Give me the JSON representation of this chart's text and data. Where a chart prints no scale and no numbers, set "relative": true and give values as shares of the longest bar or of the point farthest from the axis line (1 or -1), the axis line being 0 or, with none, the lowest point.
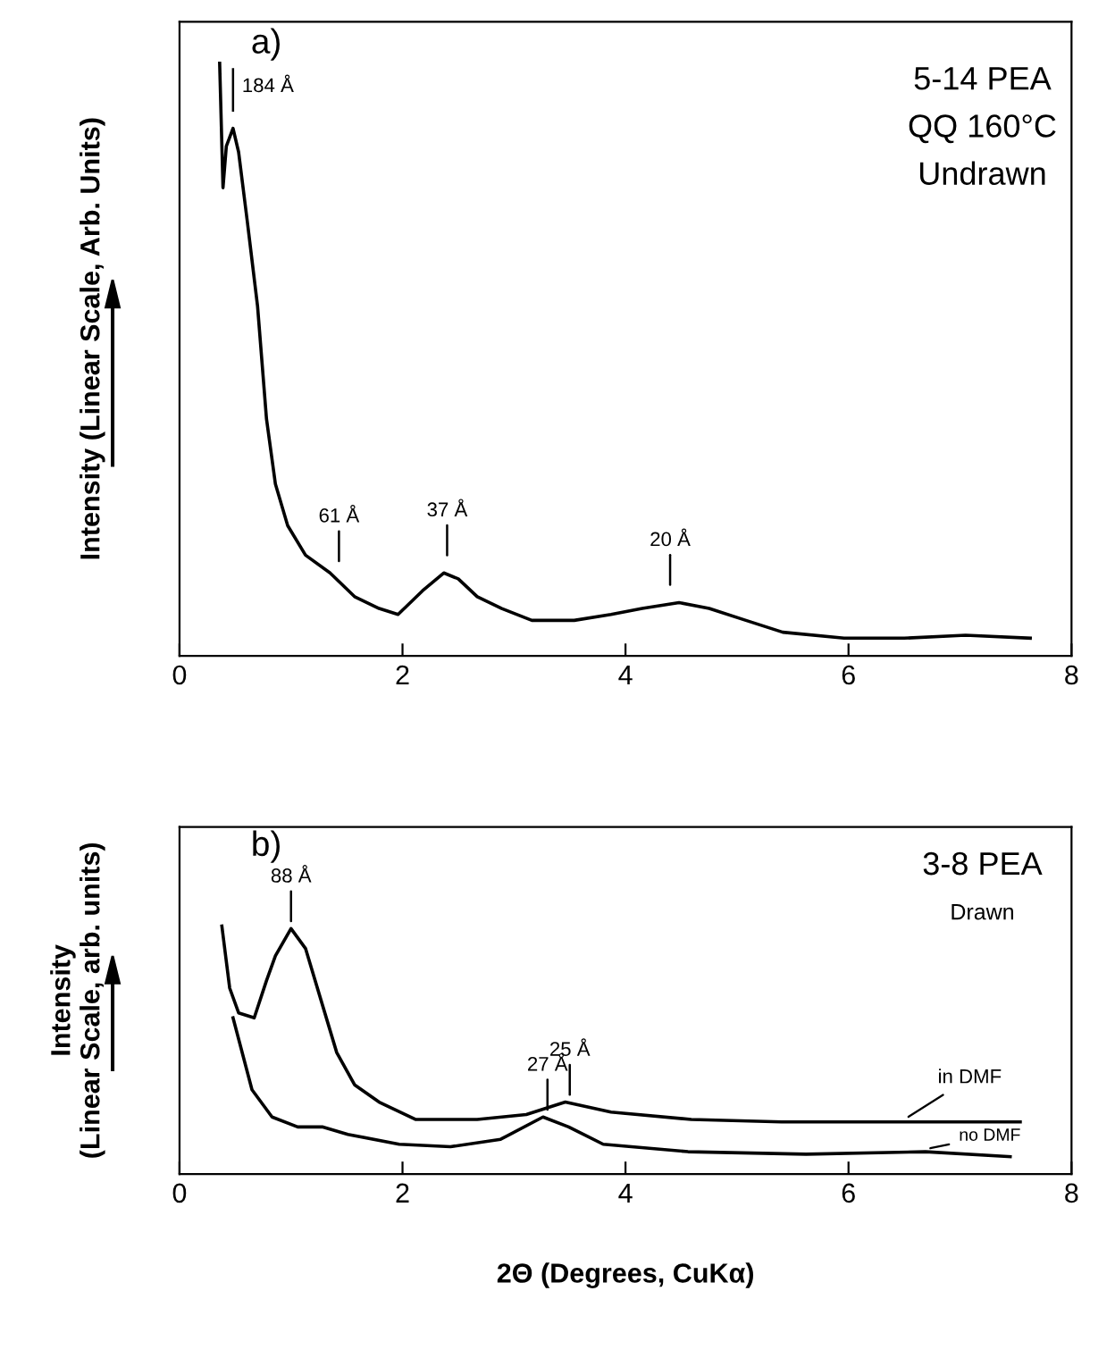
{
  "chart_data": [
    {
      "type": "line",
      "relative": true,
      "ylabel": "Intensity (Linear Scale, Arb. Units)",
      "xlim": [
        0,
        8
      ],
      "xticks": [
        0,
        2,
        4,
        6,
        8
      ],
      "line_style": "solid",
      "grid": false,
      "annotations": [
        "a)",
        "5-14 PEA",
        "QQ 160°C",
        "Undrawn",
        {
          "text": "184 Å",
          "x": 0.48,
          "y": 0.89
        },
        {
          "text": "61 Å",
          "x": 1.43,
          "y": 0.13
        },
        {
          "text": "37 Å",
          "x": 2.4,
          "y": 0.14
        },
        {
          "text": "20 Å",
          "x": 4.4,
          "y": 0.09
        }
      ],
      "series": [
        {
          "color": "#000000",
          "x": [
            0.36,
            0.39,
            0.42,
            0.48,
            0.53,
            0.61,
            0.7,
            0.78,
            0.86,
            0.97,
            1.13,
            1.35,
            1.57,
            1.79,
            1.96,
            2.18,
            2.37,
            2.5,
            2.67,
            2.89,
            3.16,
            3.54,
            3.87,
            4.15,
            4.48,
            4.75,
            5.08,
            5.41,
            5.96,
            6.5,
            7.05,
            7.63
          ],
          "values": [
            1.0,
            0.79,
            0.86,
            0.89,
            0.85,
            0.73,
            0.59,
            0.4,
            0.29,
            0.22,
            0.17,
            0.14,
            0.1,
            0.08,
            0.07,
            0.11,
            0.14,
            0.13,
            0.1,
            0.08,
            0.06,
            0.06,
            0.07,
            0.08,
            0.09,
            0.08,
            0.06,
            0.04,
            0.03,
            0.03,
            0.035,
            0.03
          ]
        }
      ]
    },
    {
      "type": "line",
      "relative": true,
      "ylabel": "Intensity\n(Linear Scale, arb. units)",
      "xlabel": "2Θ (Degrees, CuKα)",
      "xlim": [
        0,
        8
      ],
      "xticks": [
        0,
        2,
        4,
        6,
        8
      ],
      "line_style": "solid",
      "grid": false,
      "annotations": [
        "b)",
        "3-8 PEA",
        "Drawn",
        {
          "text": "88 Å",
          "x": 1.0,
          "y": 0.99
        },
        {
          "text": "25 Å",
          "x": 3.5,
          "y": 0.29
        },
        {
          "text": "27 Å",
          "x": 3.3,
          "y": 0.23
        }
      ],
      "series": [
        {
          "name": "in DMF",
          "color": "#000000",
          "x": [
            0.38,
            0.45,
            0.53,
            0.67,
            0.78,
            0.86,
            1.0,
            1.13,
            1.27,
            1.41,
            1.57,
            1.79,
            2.12,
            2.67,
            3.11,
            3.46,
            3.87,
            4.59,
            5.4,
            6.5,
            7.54
          ],
          "values": [
            1.0,
            0.75,
            0.65,
            0.63,
            0.78,
            0.88,
            0.99,
            0.91,
            0.7,
            0.49,
            0.36,
            0.29,
            0.22,
            0.22,
            0.24,
            0.29,
            0.25,
            0.22,
            0.21,
            0.21,
            0.21
          ]
        },
        {
          "name": "no DMF",
          "color": "#000000",
          "x": [
            0.48,
            0.65,
            0.83,
            1.06,
            1.28,
            1.51,
            1.97,
            2.43,
            2.88,
            3.26,
            3.49,
            3.8,
            4.56,
            5.62,
            6.69,
            7.45
          ],
          "values": [
            0.63,
            0.34,
            0.23,
            0.19,
            0.19,
            0.16,
            0.12,
            0.11,
            0.14,
            0.23,
            0.19,
            0.12,
            0.09,
            0.08,
            0.09,
            0.07
          ]
        }
      ]
    }
  ]
}
